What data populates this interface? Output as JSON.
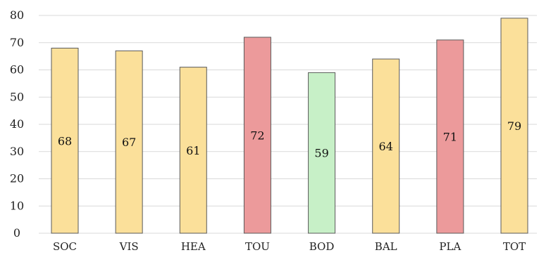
{
  "chart_data": {
    "type": "bar",
    "title": "",
    "xlabel": "",
    "ylabel": "",
    "categories": [
      "SOC",
      "VIS",
      "HEA",
      "TOU",
      "BOD",
      "BAL",
      "PLA",
      "TOT"
    ],
    "values": [
      68,
      67,
      61,
      72,
      59,
      64,
      71,
      79
    ],
    "data_labels": [
      "68",
      "67",
      "61",
      "72",
      "59",
      "64",
      "71",
      "79"
    ],
    "bar_colors": [
      "#fbe09a",
      "#fbe09a",
      "#fbe09a",
      "#ec9a9b",
      "#c7f0c7",
      "#fbe09a",
      "#ec9a9b",
      "#fbe09a"
    ],
    "ylim": [
      0,
      80
    ],
    "yticks": [
      0,
      10,
      20,
      30,
      40,
      50,
      60,
      70,
      80
    ],
    "grid": true,
    "legend": "none"
  }
}
